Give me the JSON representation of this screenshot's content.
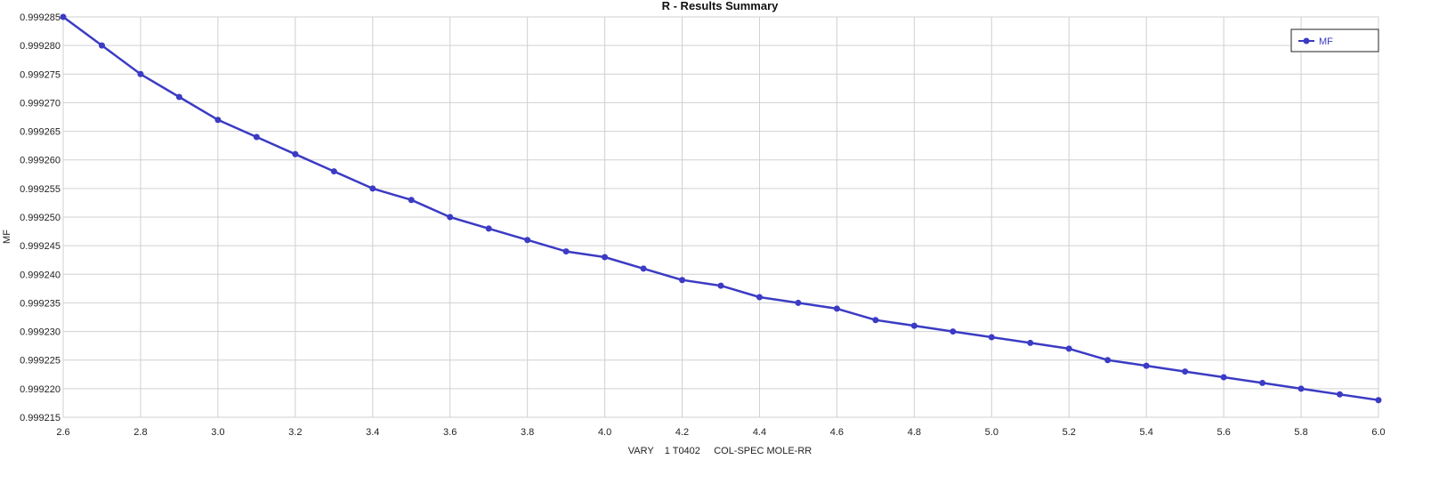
{
  "chart_data": {
    "type": "line",
    "title": "R - Results Summary",
    "xlabel": "VARY    1 T0402     COL-SPEC MOLE-RR",
    "ylabel": "MF",
    "xlim": [
      2.6,
      6.0
    ],
    "ylim": [
      0.999215,
      0.999285
    ],
    "x_ticks": [
      "2.6",
      "2.8",
      "3.0",
      "3.2",
      "3.4",
      "3.6",
      "3.8",
      "4.0",
      "4.2",
      "4.4",
      "4.6",
      "4.8",
      "5.0",
      "5.2",
      "5.4",
      "5.6",
      "5.8",
      "6.0"
    ],
    "y_ticks": [
      "0.999215",
      "0.999220",
      "0.999225",
      "0.999230",
      "0.999235",
      "0.999240",
      "0.999245",
      "0.999250",
      "0.999255",
      "0.999260",
      "0.999265",
      "0.999270",
      "0.999275",
      "0.999280",
      "0.999285"
    ],
    "grid": true,
    "legend_position": "top-right",
    "x": [
      2.6,
      2.7,
      2.8,
      2.9,
      3.0,
      3.1,
      3.2,
      3.3,
      3.4,
      3.5,
      3.6,
      3.7,
      3.8,
      3.9,
      4.0,
      4.1,
      4.2,
      4.3,
      4.4,
      4.5,
      4.6,
      4.7,
      4.8,
      4.9,
      5.0,
      5.1,
      5.2,
      5.3,
      5.4,
      5.5,
      5.6,
      5.7,
      5.8,
      5.9,
      6.0
    ],
    "series": [
      {
        "name": "MF",
        "color": "#3b3bc4",
        "values": [
          0.999285,
          0.99928,
          0.999275,
          0.999271,
          0.999267,
          0.999264,
          0.999261,
          0.999258,
          0.999255,
          0.999253,
          0.99925,
          0.999248,
          0.999246,
          0.999244,
          0.999243,
          0.999241,
          0.999239,
          0.999238,
          0.999236,
          0.999235,
          0.999234,
          0.999232,
          0.999231,
          0.99923,
          0.999229,
          0.999228,
          0.999227,
          0.999225,
          0.999224,
          0.999223,
          0.999222,
          0.999221,
          0.99922,
          0.999219,
          0.999218
        ]
      }
    ]
  }
}
